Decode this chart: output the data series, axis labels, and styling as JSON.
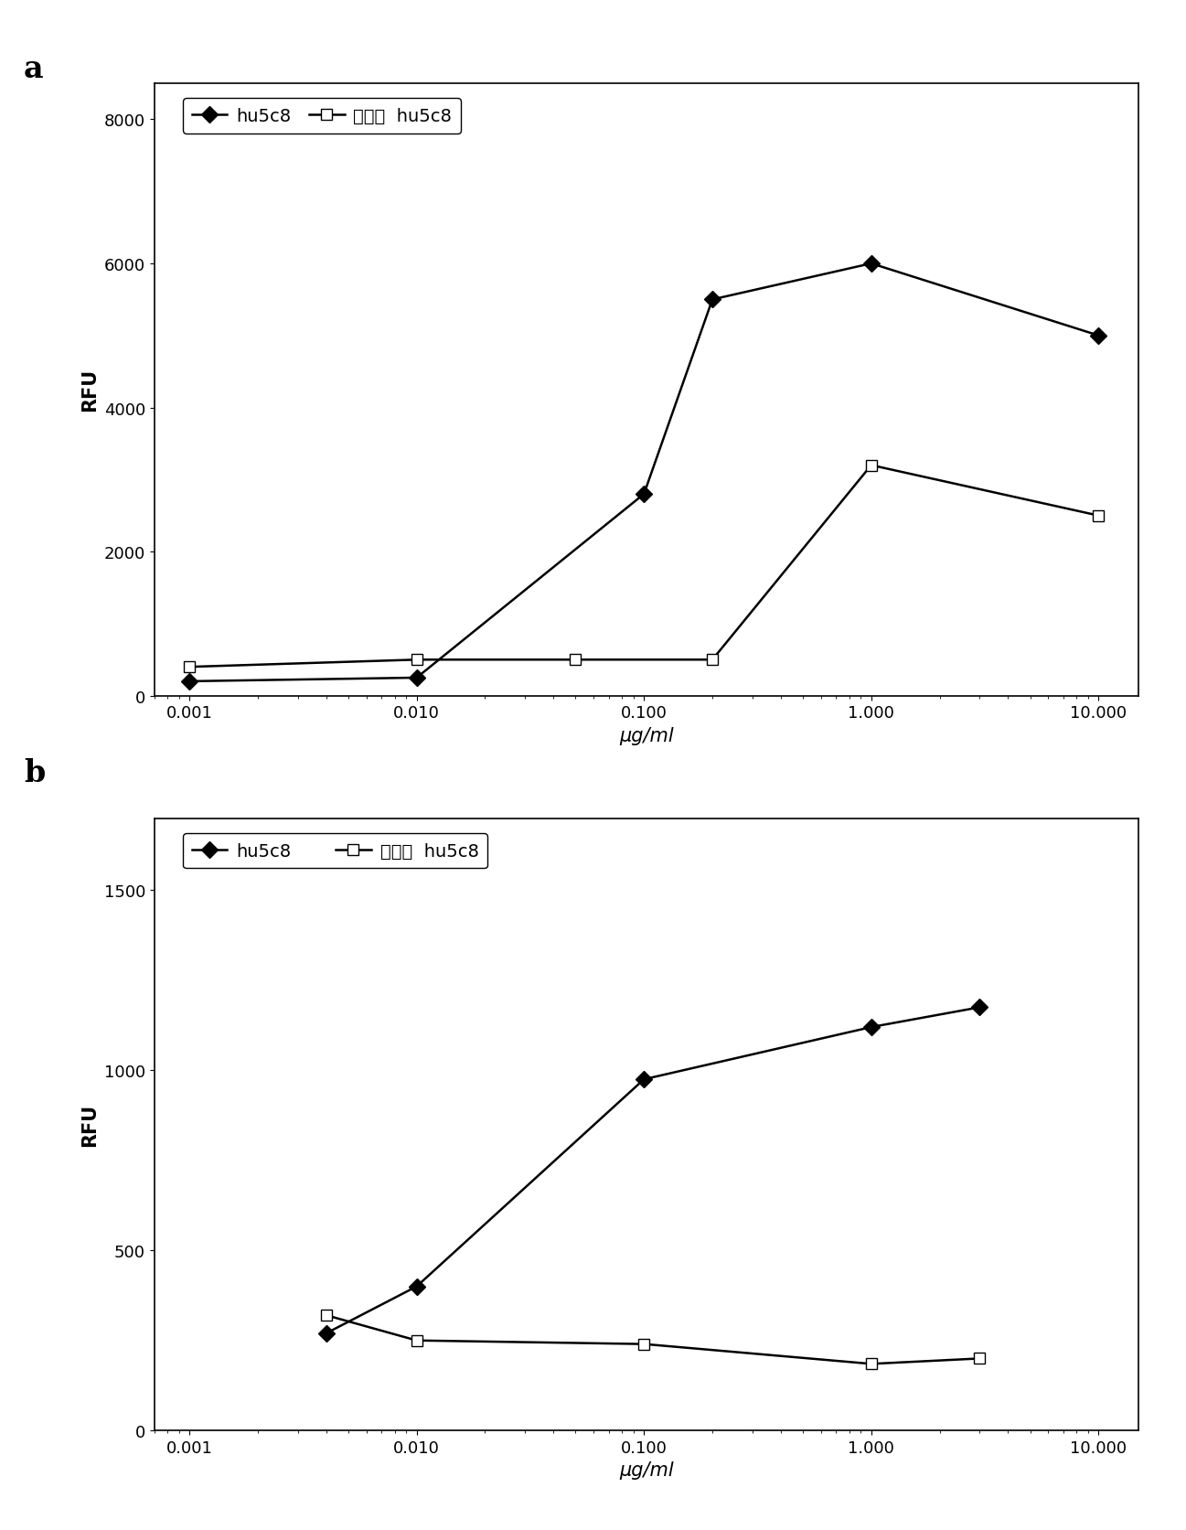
{
  "panel_a": {
    "hu5c8_x": [
      0.001,
      0.01,
      0.1,
      0.2,
      1.0,
      10.0
    ],
    "hu5c8_y": [
      200,
      250,
      2800,
      5500,
      6000,
      5000
    ],
    "agly_x": [
      0.001,
      0.01,
      0.05,
      0.2,
      1.0,
      10.0
    ],
    "agly_y": [
      400,
      500,
      500,
      500,
      3200,
      2500
    ],
    "ylabel": "RFU",
    "xlabel": "μg/ml",
    "ylim": [
      0,
      8500
    ],
    "yticks": [
      0,
      2000,
      4000,
      6000,
      8000
    ],
    "xtick_vals": [
      0.001,
      0.01,
      0.1,
      1.0,
      10.0
    ],
    "xtick_labels": [
      "0.001",
      "0.010",
      "0.100",
      "1.000",
      "10.000"
    ]
  },
  "panel_b": {
    "hu5c8_x": [
      0.004,
      0.01,
      0.1,
      1.0,
      3.0
    ],
    "hu5c8_y": [
      270,
      400,
      975,
      1120,
      1175
    ],
    "agly_x": [
      0.004,
      0.01,
      0.1,
      1.0,
      3.0
    ],
    "agly_y": [
      320,
      250,
      240,
      185,
      200
    ],
    "ylabel": "RFU",
    "xlabel": "μg/ml",
    "ylim": [
      0,
      1700
    ],
    "yticks": [
      0,
      500,
      1000,
      1500
    ],
    "xtick_vals": [
      0.001,
      0.01,
      0.1,
      1.0,
      10.0
    ],
    "xtick_labels": [
      "0.001",
      "0.010",
      "0.100",
      "1.000",
      "10.000"
    ]
  },
  "legend_hu5c8": "hu5c8",
  "legend_agly_cn": "无糖基",
  "legend_agly_en": "hu5c8",
  "line_color": "#000000",
  "marker_diamond": "D",
  "marker_square": "s",
  "marker_size_diamond": 9,
  "marker_size_square": 9,
  "linewidth": 1.8,
  "panel_label_fontsize": 24,
  "axis_label_fontsize": 15,
  "tick_fontsize": 13,
  "legend_fontsize": 14,
  "background_color": "#ffffff"
}
